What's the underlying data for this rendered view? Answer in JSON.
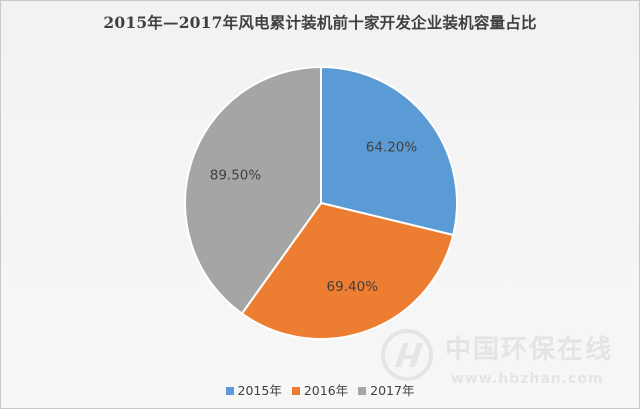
{
  "chart_data": {
    "type": "pie",
    "title": "2015年—2017年风电累计装机前十家开发企业装机容量占比",
    "categories": [
      "2015年",
      "2016年",
      "2017年"
    ],
    "values": [
      64.2,
      69.4,
      89.5
    ],
    "labels": [
      "64.20%",
      "69.40%",
      "89.50%"
    ],
    "colors": [
      "#5b9bd5",
      "#ed7d31",
      "#a5a5a5"
    ],
    "legend_position": "bottom",
    "start_angle_deg": 0,
    "direction": "clockwise"
  },
  "watermark": {
    "name": "中国环保在线",
    "url": "www.hbzhan.com"
  }
}
